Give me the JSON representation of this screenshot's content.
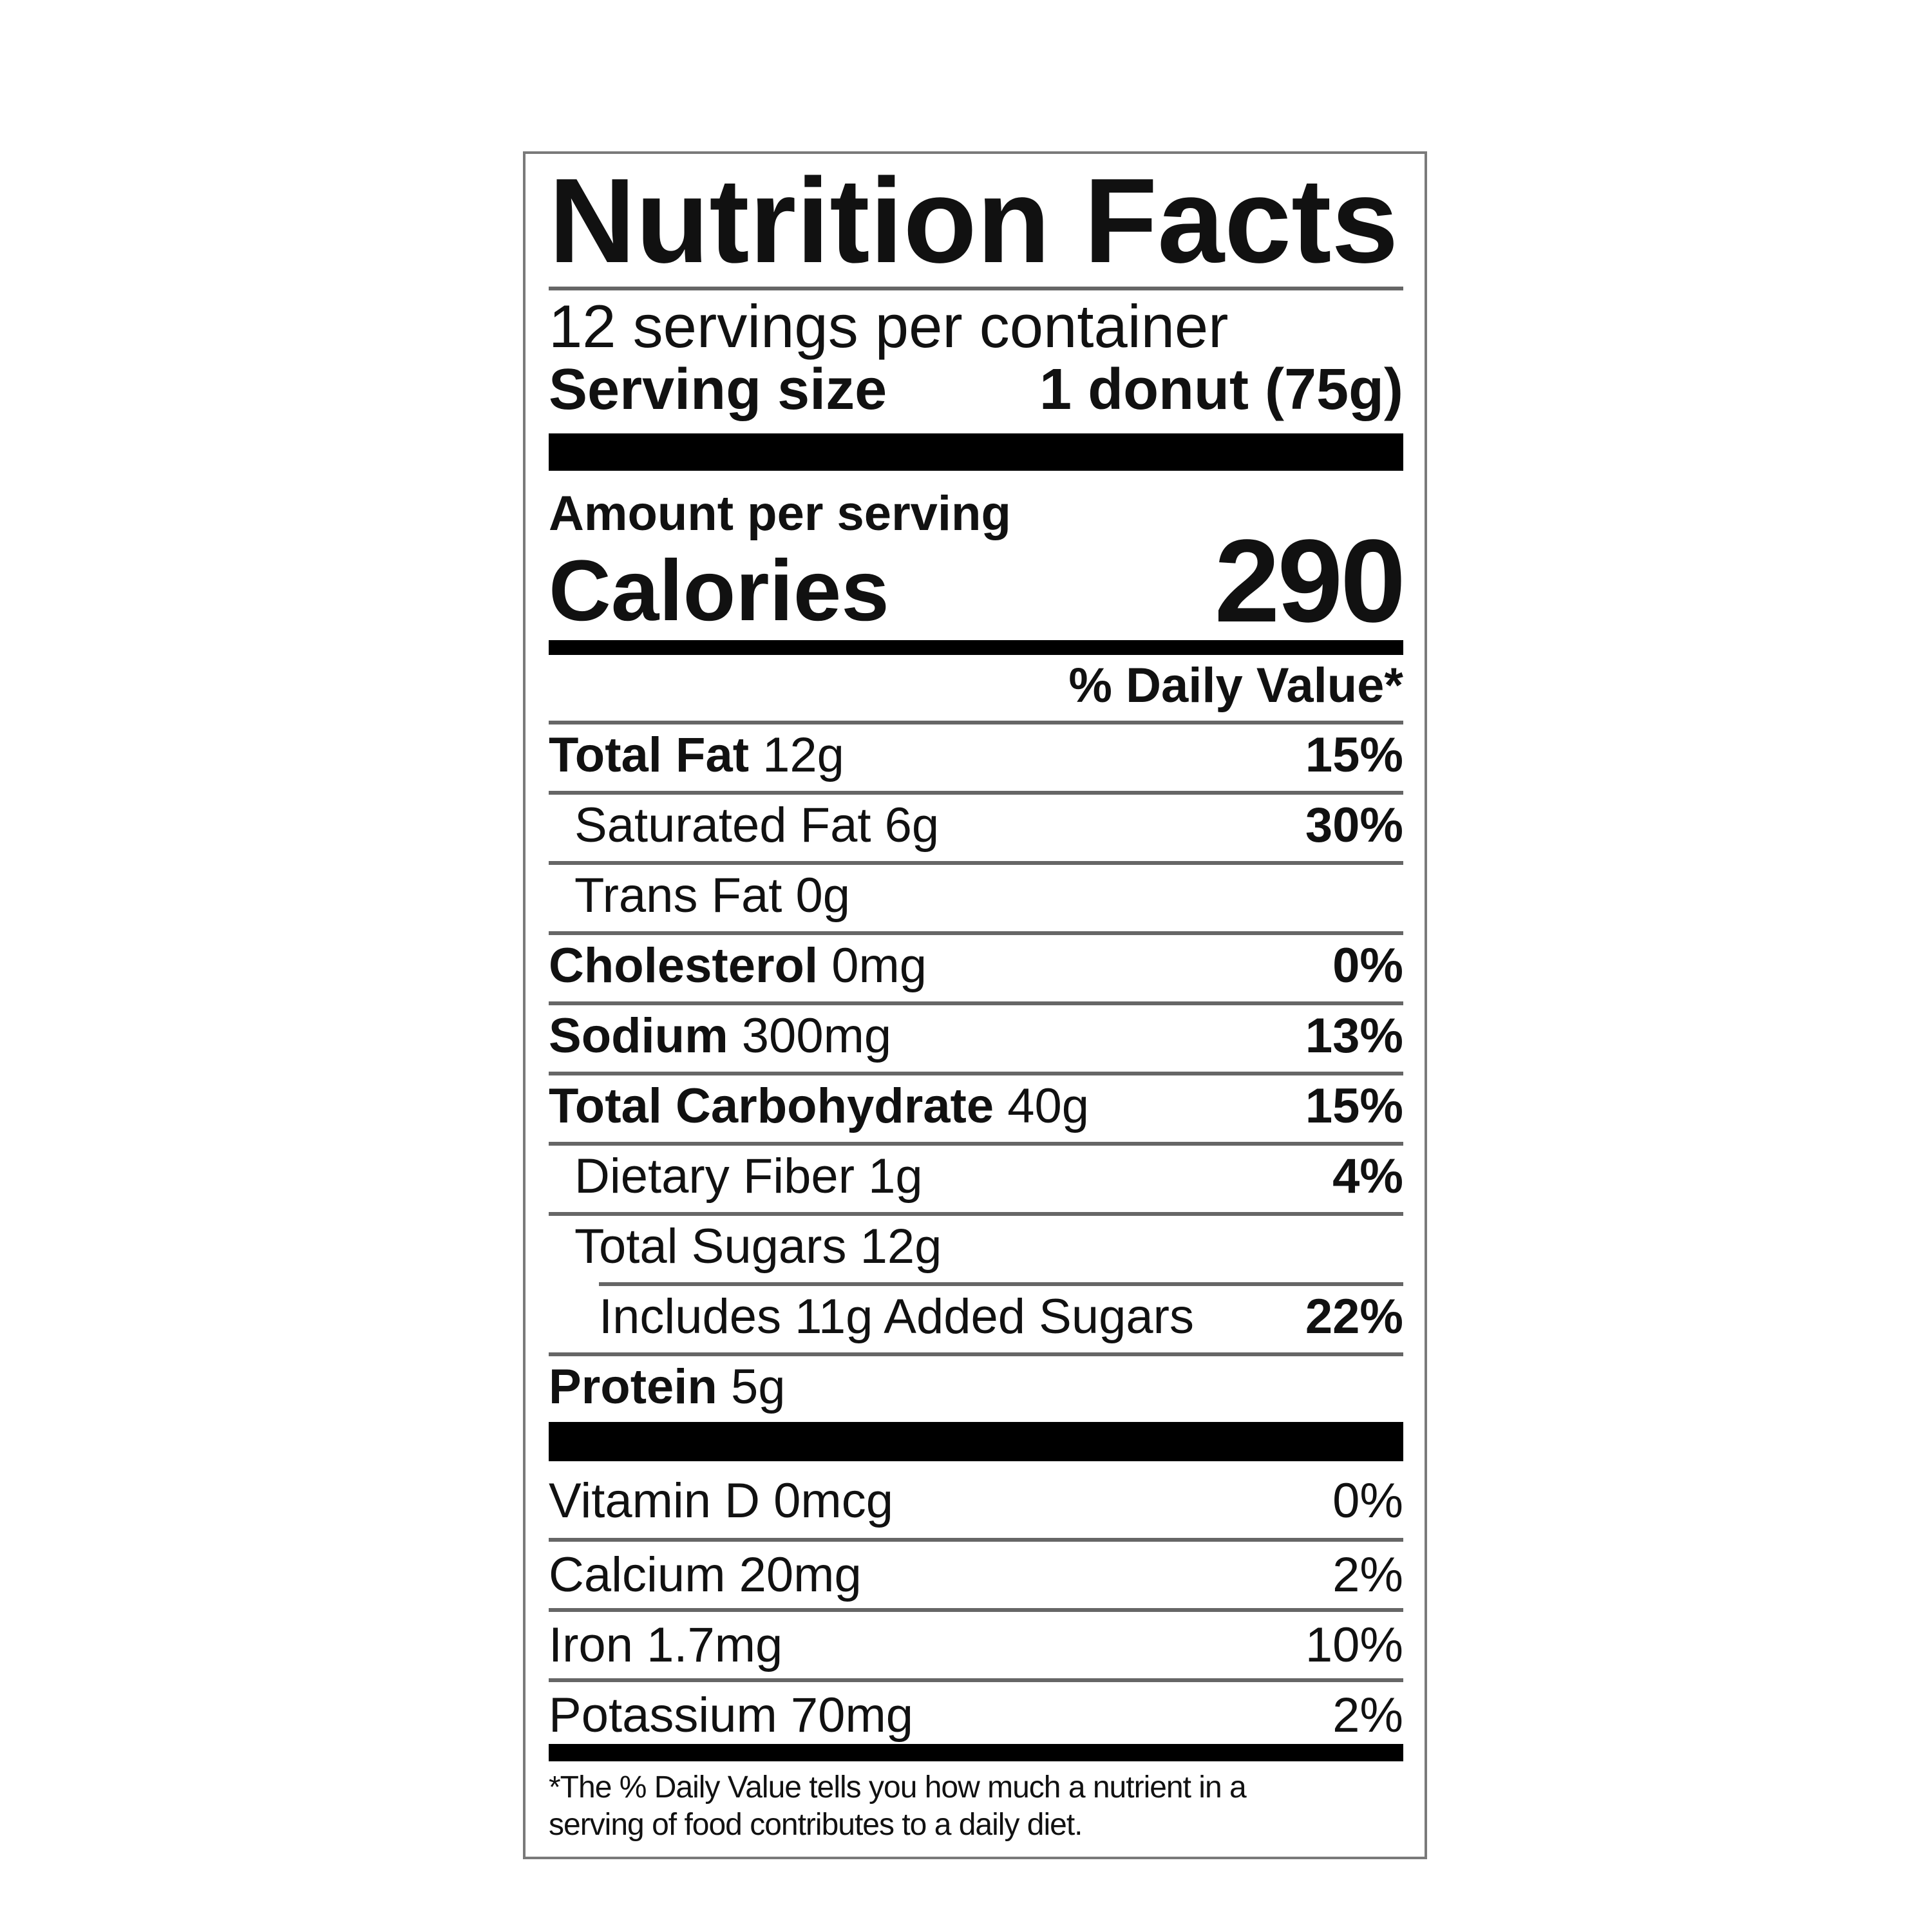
{
  "title": "Nutrition Facts",
  "servings_per_container": "12 servings per container",
  "serving_size_label": "Serving size",
  "serving_size_value": "1 donut (75g)",
  "amount_per_serving": "Amount per serving",
  "calories_label": "Calories",
  "calories_value": "290",
  "daily_value_header": "% Daily Value*",
  "nutrients": [
    {
      "label": "Total Fat",
      "amount": "12g",
      "dv": "15%"
    },
    {
      "label": "Saturated Fat",
      "amount": "6g",
      "dv": "30%"
    },
    {
      "label": "Trans Fat",
      "amount": "0g",
      "dv": ""
    },
    {
      "label": "Cholesterol",
      "amount": "0mg",
      "dv": "0%"
    },
    {
      "label": "Sodium",
      "amount": "300mg",
      "dv": "13%"
    },
    {
      "label": "Total Carbohydrate",
      "amount": "40g",
      "dv": "15%"
    },
    {
      "label": "Dietary Fiber",
      "amount": "1g",
      "dv": "4%"
    },
    {
      "label": "Total Sugars",
      "amount": "12g",
      "dv": ""
    },
    {
      "label": "Includes 11g Added Sugars",
      "amount": "",
      "dv": "22%"
    },
    {
      "label": "Protein",
      "amount": "5g",
      "dv": ""
    }
  ],
  "vitamins": [
    {
      "label": "Vitamin D 0mcg",
      "dv": "0%"
    },
    {
      "label": "Calcium 20mg",
      "dv": "2%"
    },
    {
      "label": "Iron 1.7mg",
      "dv": "10%"
    },
    {
      "label": "Potassium 70mg",
      "dv": "2%"
    }
  ],
  "footnote_line1": "*The % Daily Value tells you how much a nutrient in a",
  "footnote_line2": "serving of food contributes to a daily diet."
}
